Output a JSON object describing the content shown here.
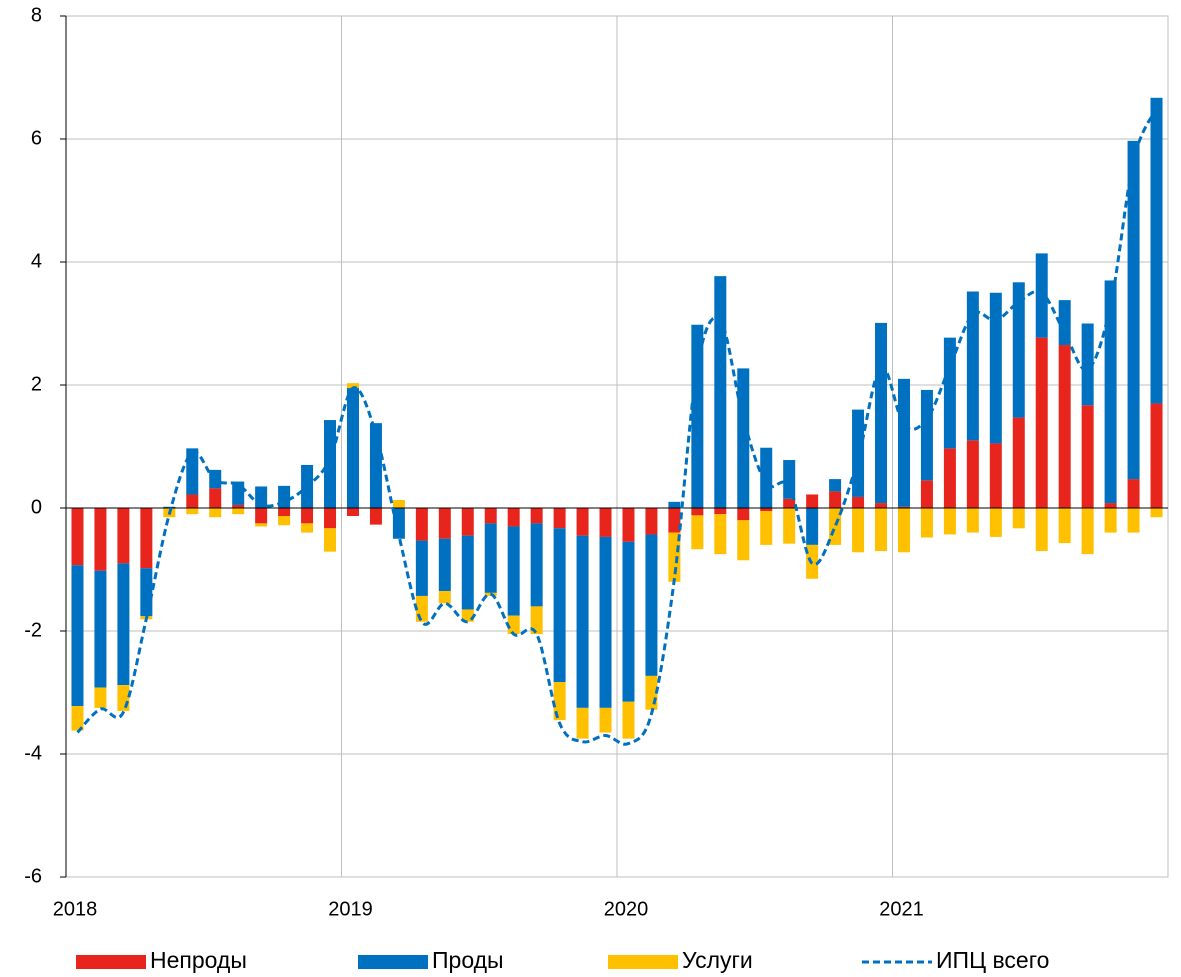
{
  "chart_data": {
    "type": "bar",
    "categories": [
      "2018",
      null,
      null,
      null,
      null,
      null,
      null,
      null,
      null,
      null,
      null,
      null,
      "2019",
      null,
      null,
      null,
      null,
      null,
      null,
      null,
      null,
      null,
      null,
      null,
      "2020",
      null,
      null,
      null,
      null,
      null,
      null,
      null,
      null,
      null,
      null,
      null,
      "2021",
      null,
      null,
      null,
      null,
      null,
      null,
      null,
      null,
      null,
      null,
      null
    ],
    "series": [
      {
        "name": "Непроды",
        "color": "#e8251c",
        "values": [
          -0.93,
          -1.02,
          -0.9,
          -0.98,
          0,
          0.22,
          0.32,
          0.05,
          -0.25,
          -0.13,
          -0.25,
          -0.33,
          -0.13,
          -0.27,
          0,
          -0.53,
          -0.5,
          -0.45,
          -0.25,
          -0.3,
          -0.25,
          -0.33,
          -0.45,
          -0.47,
          -0.55,
          -0.43,
          -0.4,
          -0.12,
          -0.1,
          -0.2,
          -0.05,
          0.15,
          0.22,
          0.27,
          0.18,
          0.08,
          0.02,
          0.45,
          0.97,
          1.1,
          1.05,
          1.47,
          2.77,
          2.65,
          1.67,
          0.08,
          0.47,
          1.7
        ]
      },
      {
        "name": "Проды",
        "color": "#0070c0",
        "values": [
          -2.29,
          -1.9,
          -1.98,
          -0.78,
          0.02,
          0.75,
          0.3,
          0.38,
          0.35,
          0.36,
          0.7,
          1.43,
          1.95,
          1.38,
          -0.5,
          -0.9,
          -0.85,
          -1.2,
          -1.13,
          -1.45,
          -1.35,
          -2.5,
          -2.8,
          -2.78,
          -2.6,
          -2.3,
          0.1,
          2.98,
          3.77,
          2.27,
          0.98,
          0.63,
          -0.6,
          0.2,
          1.42,
          2.93,
          2.08,
          1.47,
          1.8,
          2.42,
          2.45,
          2.2,
          1.37,
          0.73,
          1.33,
          3.62,
          5.5,
          4.97
        ]
      },
      {
        "name": "Услуги",
        "color": "#ffc000",
        "values": [
          -0.4,
          -0.33,
          -0.42,
          -0.05,
          -0.15,
          -0.1,
          -0.15,
          -0.1,
          -0.05,
          -0.15,
          -0.15,
          -0.38,
          0.08,
          0,
          0.13,
          -0.42,
          -0.2,
          -0.2,
          -0.05,
          -0.3,
          -0.45,
          -0.62,
          -0.5,
          -0.4,
          -0.6,
          -0.55,
          -0.8,
          -0.55,
          -0.65,
          -0.65,
          -0.55,
          -0.58,
          -0.55,
          -0.6,
          -0.72,
          -0.7,
          -0.72,
          -0.48,
          -0.43,
          -0.4,
          -0.47,
          -0.33,
          -0.7,
          -0.57,
          -0.75,
          -0.4,
          -0.4,
          -0.15
        ]
      },
      {
        "name": "ИПЦ всего",
        "type": "line",
        "dashed": true,
        "color": "#0070c0",
        "values": [
          -3.65,
          -3.27,
          -3.32,
          -1.8,
          -0.1,
          0.9,
          0.45,
          0.38,
          0.05,
          0.1,
          0.35,
          0.8,
          1.95,
          1.2,
          -0.45,
          -1.85,
          -1.55,
          -1.85,
          -1.4,
          -2.05,
          -2.05,
          -3.5,
          -3.8,
          -3.7,
          -3.83,
          -3.35,
          -1.15,
          2.3,
          3.05,
          1.45,
          0.4,
          0.35,
          -0.9,
          -0.3,
          0.8,
          2.3,
          1.35,
          1.45,
          2.3,
          3.15,
          3.05,
          3.35,
          3.5,
          2.85,
          2.25,
          3.3,
          5.65,
          6.5
        ]
      }
    ],
    "ylim": [
      -6,
      8
    ],
    "yticks": [
      -6,
      -4,
      -2,
      0,
      2,
      4,
      6,
      8
    ],
    "grid": true,
    "legend": "bottom"
  }
}
